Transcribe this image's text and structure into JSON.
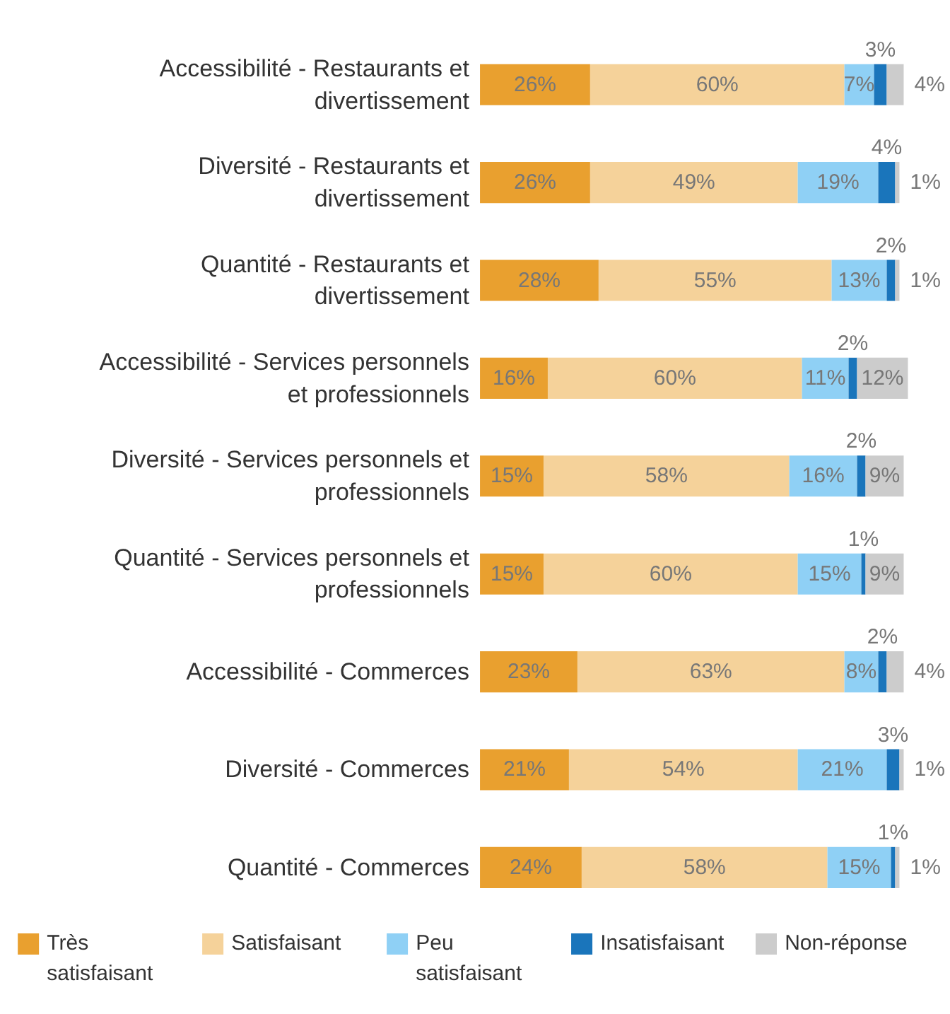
{
  "chart_data": {
    "type": "bar",
    "orientation": "horizontal",
    "stacked": true,
    "categories": [
      "Accessibilité - Restaurants et divertissement",
      "Diversité - Restaurants et divertissement",
      "Quantité - Restaurants et divertissement",
      "Accessibilité - Services personnels et professionnels",
      "Diversité - Services personnels et professionnels",
      "Quantité - Services personnels et professionnels",
      "Accessibilité - Commerces",
      "Diversité - Commerces",
      "Quantité - Commerces"
    ],
    "series": [
      {
        "name": "Très satisfaisant",
        "color": "#e9a02f",
        "values": [
          26,
          26,
          28,
          16,
          15,
          15,
          23,
          21,
          24
        ],
        "value_labels": [
          "26%",
          "26%",
          "28%",
          "16%",
          "15%",
          "15%",
          "23%",
          "21%",
          "24%"
        ]
      },
      {
        "name": "Satisfaisant",
        "color": "#f5d29a",
        "values": [
          60,
          49,
          55,
          60,
          58,
          60,
          63,
          54,
          58
        ],
        "value_labels": [
          "60%",
          "49%",
          "55%",
          "60%",
          "58%",
          "60%",
          "63%",
          "54%",
          "58%"
        ]
      },
      {
        "name": "Peu satisfaisant",
        "color": "#8fd0f5",
        "values": [
          7,
          19,
          13,
          11,
          16,
          15,
          8,
          21,
          15
        ],
        "value_labels": [
          "7%",
          "19%",
          "13%",
          "11%",
          "16%",
          "15%",
          "8%",
          "21%",
          "15%"
        ]
      },
      {
        "name": "Insatisfaisant",
        "color": "#1a75bb",
        "values": [
          3,
          4,
          2,
          2,
          2,
          1,
          2,
          3,
          1
        ],
        "value_labels": [
          "3%",
          "4%",
          "2%",
          "2%",
          "2%",
          "1%",
          "2%",
          "3%",
          "1%"
        ]
      },
      {
        "name": "Non-réponse",
        "color": "#cccccc",
        "values": [
          4,
          1,
          1,
          12,
          9,
          9,
          4,
          1,
          1
        ],
        "value_labels": [
          "4%",
          "1%",
          "1%",
          "12%",
          "9%",
          "9%",
          "4%",
          "1%",
          "1%"
        ]
      }
    ],
    "tick_labels": "y",
    "legend": "bottom"
  }
}
